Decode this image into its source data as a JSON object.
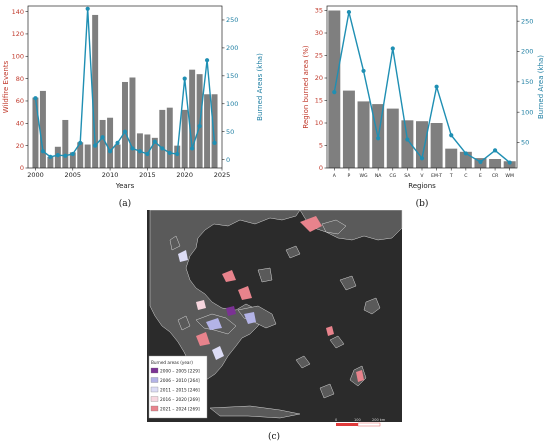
{
  "panels": {
    "a_label": "(a)",
    "b_label": "(b)",
    "c_label": "(c)"
  },
  "colors": {
    "bar": "#7f7f7f",
    "line": "#1f8fb3",
    "left_axis": "#c0392b",
    "right_axis": "#1f7fa3",
    "sea": "#2a2a2a",
    "land": "#555555"
  },
  "chart_data": [
    {
      "type": "bar",
      "panel": "a",
      "xlabel": "Years",
      "ylabel_left": "Wildfire Events",
      "ylabel_right": "Burned Areas (kha)",
      "x": [
        2000,
        2001,
        2002,
        2003,
        2004,
        2005,
        2006,
        2007,
        2008,
        2009,
        2010,
        2011,
        2012,
        2013,
        2014,
        2015,
        2016,
        2017,
        2018,
        2019,
        2020,
        2021,
        2022,
        2023,
        2024
      ],
      "xticks": [
        2000,
        2005,
        2010,
        2015,
        2020,
        2025
      ],
      "xlim": [
        1999,
        2025
      ],
      "ylim_left": [
        0,
        145
      ],
      "yticks_left": [
        0,
        20,
        40,
        60,
        80,
        100,
        120,
        140
      ],
      "ylim_right": [
        -15,
        275
      ],
      "yticks_right": [
        0,
        50,
        100,
        150,
        200,
        250
      ],
      "series": [
        {
          "name": "Wildfire Events",
          "axis": "left",
          "kind": "bar",
          "values": [
            63,
            69,
            10,
            19,
            43,
            14,
            23,
            21,
            137,
            43,
            45,
            21,
            77,
            81,
            31,
            30,
            27,
            52,
            54,
            20,
            52,
            88,
            84,
            66,
            66
          ]
        },
        {
          "name": "Burned Areas (kha)",
          "axis": "right",
          "kind": "line",
          "values": [
            110,
            15,
            5,
            8,
            7,
            10,
            30,
            270,
            25,
            40,
            15,
            30,
            50,
            20,
            15,
            10,
            32,
            20,
            12,
            10,
            145,
            20,
            60,
            178,
            30
          ]
        }
      ]
    },
    {
      "type": "bar",
      "panel": "b",
      "xlabel": "Regions",
      "ylabel_left": "Region burned area (%)",
      "ylabel_right": "Burned Area (kha)",
      "categories": [
        "A",
        "P",
        "WG",
        "NA",
        "CG",
        "SA",
        "V",
        "EM-T",
        "T",
        "C",
        "E",
        "CR",
        "WM"
      ],
      "ylim_left": [
        0,
        36
      ],
      "yticks_left": [
        0,
        5,
        10,
        15,
        20,
        25,
        30,
        35
      ],
      "ylim_right": [
        8,
        275
      ],
      "yticks_right": [
        50,
        100,
        150,
        200,
        250
      ],
      "series": [
        {
          "name": "Region burned area (%)",
          "axis": "left",
          "kind": "bar",
          "values": [
            35,
            17.2,
            14.8,
            14.2,
            13.2,
            10.6,
            10.4,
            10.0,
            4.3,
            3.6,
            2.2,
            2.0,
            1.5
          ]
        },
        {
          "name": "Burned Area (kha)",
          "axis": "right",
          "kind": "line",
          "values": [
            133,
            265,
            168,
            57,
            205,
            55,
            24,
            142,
            62,
            32,
            18,
            37,
            17
          ]
        }
      ]
    }
  ],
  "map": {
    "legend_title": "Burned areas (year)",
    "legend": [
      {
        "label": "2000 – 2005 [229]",
        "color": "#7b3294"
      },
      {
        "label": "2006 – 2010 [264]",
        "color": "#b3b3e6"
      },
      {
        "label": "2011 – 2015 [246]",
        "color": "#dcdcf5"
      },
      {
        "label": "2016 – 2020 [269]",
        "color": "#f7d6df"
      },
      {
        "label": "2021 – 2024 [269]",
        "color": "#e8838c"
      }
    ],
    "scale_labels": [
      "0",
      "100",
      "200 km"
    ]
  }
}
